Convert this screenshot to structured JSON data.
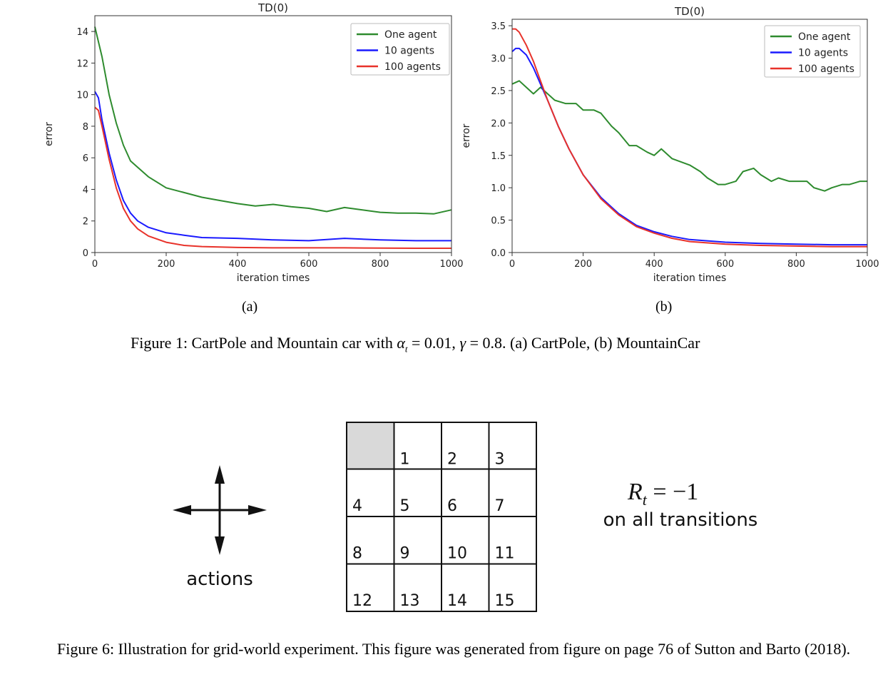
{
  "chart_data": [
    {
      "type": "line",
      "title": "TD(0)",
      "xlabel": "iteration times",
      "ylabel": "error",
      "xlim": [
        0,
        1000
      ],
      "ylim": [
        0,
        15
      ],
      "xticks": [
        "0",
        "200",
        "400",
        "600",
        "800",
        "1000"
      ],
      "yticks": [
        "0",
        "2",
        "4",
        "6",
        "8",
        "10",
        "12",
        "14"
      ],
      "legend_position": "top-right",
      "grid": false,
      "series": [
        {
          "name": "One agent",
          "color": "#2e8b2e",
          "x": [
            0,
            20,
            40,
            60,
            80,
            100,
            120,
            150,
            200,
            250,
            300,
            350,
            400,
            450,
            500,
            550,
            600,
            650,
            700,
            750,
            800,
            850,
            900,
            950,
            1000
          ],
          "y": [
            14.3,
            12.4,
            10.0,
            8.2,
            6.8,
            5.8,
            5.4,
            4.8,
            4.1,
            3.8,
            3.5,
            3.3,
            3.1,
            2.95,
            3.05,
            2.9,
            2.8,
            2.6,
            2.85,
            2.7,
            2.55,
            2.5,
            2.5,
            2.45,
            2.7
          ]
        },
        {
          "name": "10 agents",
          "color": "#1a1aff",
          "x": [
            0,
            10,
            20,
            40,
            60,
            80,
            100,
            120,
            150,
            200,
            250,
            300,
            400,
            500,
            600,
            700,
            800,
            900,
            1000
          ],
          "y": [
            10.2,
            9.8,
            8.4,
            6.3,
            4.6,
            3.3,
            2.5,
            2.0,
            1.6,
            1.25,
            1.1,
            0.95,
            0.9,
            0.8,
            0.75,
            0.9,
            0.8,
            0.75,
            0.75
          ]
        },
        {
          "name": "100 agents",
          "color": "#e8322a",
          "x": [
            0,
            10,
            20,
            40,
            60,
            80,
            100,
            120,
            150,
            200,
            250,
            300,
            400,
            500,
            600,
            700,
            800,
            900,
            1000
          ],
          "y": [
            9.2,
            9.0,
            8.0,
            5.9,
            4.1,
            2.8,
            2.0,
            1.5,
            1.05,
            0.65,
            0.45,
            0.38,
            0.32,
            0.3,
            0.3,
            0.3,
            0.28,
            0.27,
            0.27
          ]
        }
      ]
    },
    {
      "type": "line",
      "title": "TD(0)",
      "xlabel": "iteration times",
      "ylabel": "error",
      "xlim": [
        0,
        1000
      ],
      "ylim": [
        0,
        3.6
      ],
      "xticks": [
        "0",
        "200",
        "400",
        "600",
        "800",
        "1000"
      ],
      "yticks": [
        "0.0",
        "0.5",
        "1.0",
        "1.5",
        "2.0",
        "2.5",
        "3.0",
        "3.5"
      ],
      "legend_position": "top-right",
      "grid": false,
      "series": [
        {
          "name": "One agent",
          "color": "#2e8b2e",
          "x": [
            0,
            20,
            40,
            60,
            80,
            100,
            120,
            150,
            180,
            200,
            230,
            250,
            280,
            300,
            330,
            350,
            380,
            400,
            420,
            450,
            500,
            530,
            550,
            580,
            600,
            630,
            650,
            680,
            700,
            730,
            750,
            780,
            800,
            830,
            850,
            880,
            900,
            930,
            950,
            980,
            1000
          ],
          "y": [
            2.6,
            2.65,
            2.55,
            2.45,
            2.55,
            2.45,
            2.35,
            2.3,
            2.3,
            2.2,
            2.2,
            2.15,
            1.95,
            1.85,
            1.65,
            1.65,
            1.55,
            1.5,
            1.6,
            1.45,
            1.35,
            1.25,
            1.15,
            1.05,
            1.05,
            1.1,
            1.25,
            1.3,
            1.2,
            1.1,
            1.15,
            1.1,
            1.1,
            1.1,
            1.0,
            0.95,
            1.0,
            1.05,
            1.05,
            1.1,
            1.1
          ]
        },
        {
          "name": "10 agents",
          "color": "#1a1aff",
          "x": [
            0,
            10,
            20,
            40,
            60,
            80,
            100,
            130,
            160,
            200,
            250,
            300,
            350,
            400,
            450,
            500,
            600,
            700,
            800,
            900,
            1000
          ],
          "y": [
            3.1,
            3.15,
            3.15,
            3.05,
            2.85,
            2.6,
            2.35,
            1.95,
            1.6,
            1.2,
            0.85,
            0.6,
            0.42,
            0.32,
            0.25,
            0.2,
            0.16,
            0.14,
            0.13,
            0.12,
            0.12
          ]
        },
        {
          "name": "100 agents",
          "color": "#e8322a",
          "x": [
            0,
            10,
            20,
            40,
            60,
            80,
            100,
            130,
            160,
            200,
            250,
            300,
            350,
            400,
            450,
            500,
            600,
            700,
            800,
            900,
            1000
          ],
          "y": [
            3.45,
            3.45,
            3.4,
            3.2,
            2.95,
            2.65,
            2.35,
            1.95,
            1.6,
            1.2,
            0.83,
            0.58,
            0.4,
            0.3,
            0.22,
            0.17,
            0.13,
            0.11,
            0.1,
            0.09,
            0.09
          ]
        }
      ]
    }
  ],
  "figure1": {
    "sublabel_a": "(a)",
    "sublabel_b": "(b)",
    "caption": "Figure 1: CartPole and Mountain car with α_t = 0.01, γ = 0.8. (a) CartPole, (b) MountainCar",
    "caption_prefix": "Figure 1: CartPole and Mountain car with ",
    "caption_alpha": "α",
    "caption_alpha_sub": "t",
    "caption_alpha_val": " = 0.01, ",
    "caption_gamma": "γ",
    "caption_rest": " = 0.8. (a) CartPole, (b) MountainCar"
  },
  "gridworld": {
    "cells": [
      "",
      "1",
      "2",
      "3",
      "4",
      "5",
      "6",
      "7",
      "8",
      "9",
      "10",
      "11",
      "12",
      "13",
      "14",
      "15"
    ],
    "terminal_color": "#d9d9d9",
    "actions_label": "actions",
    "reward_R": "R",
    "reward_sub": "t",
    "reward_eq": " = −1",
    "reward_note": "on all transitions"
  },
  "figure6": {
    "caption": "Figure 6: Illustration for grid-world experiment. This figure was generated from figure on page 76 of Sutton and Barto (2018)."
  }
}
